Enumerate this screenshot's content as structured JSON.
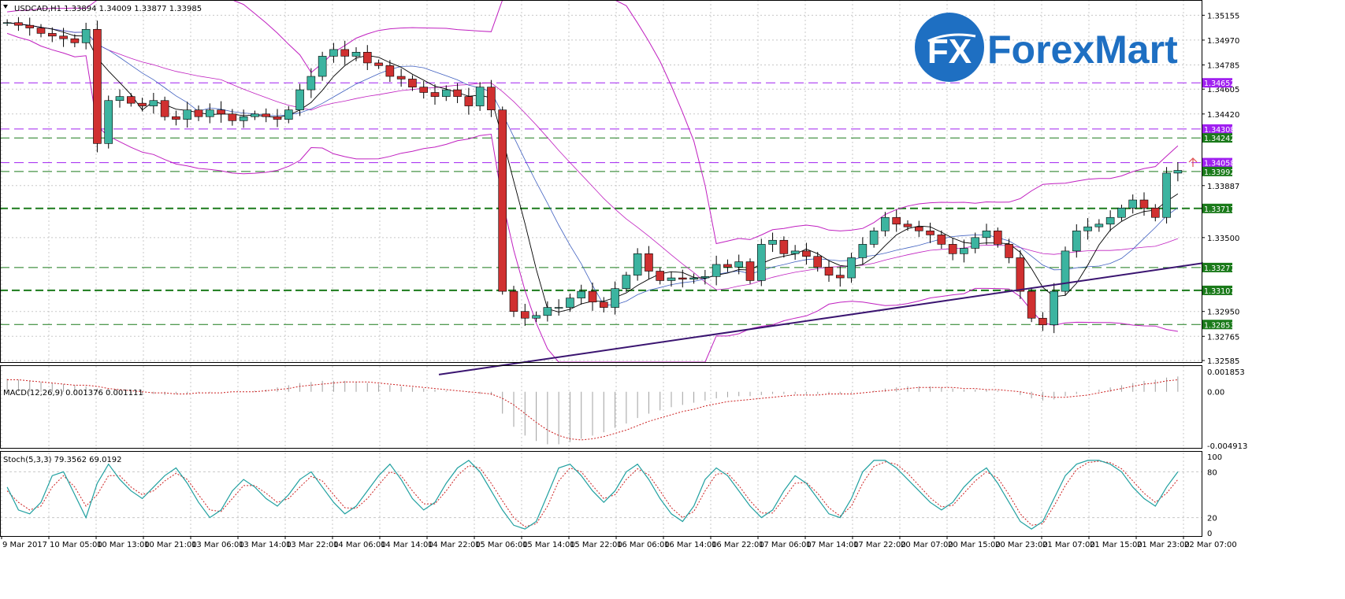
{
  "header": {
    "symbol_line": "USDCAD,H1  1.33894 1.34009 1.33877 1.33985"
  },
  "logo": {
    "mark": "FX",
    "brand": "ForexMart"
  },
  "chart_data": [
    {
      "type": "candlestick",
      "title": "USDCAD,H1  1.33894 1.34009 1.33877 1.33985",
      "price_axis_ticks": [
        "1.35155",
        "1.34970",
        "1.34785",
        "1.34605",
        "1.34420",
        "1.33887",
        "1.33500",
        "1.32950",
        "1.32765",
        "1.32585"
      ],
      "price_range": [
        1.32585,
        1.35245
      ],
      "level_lines": [
        {
          "value": "1.34652",
          "price": 1.34652,
          "color": "#a020f0",
          "style": "dash"
        },
        {
          "value": "1.34308",
          "price": 1.34308,
          "color": "#a020f0",
          "style": "dash"
        },
        {
          "value": "1.34242",
          "price": 1.34242,
          "color": "#1a7a1a",
          "style": "dash"
        },
        {
          "value": "1.34058",
          "price": 1.34058,
          "color": "#a020f0",
          "style": "dash"
        },
        {
          "value": "1.33992",
          "price": 1.33992,
          "color": "#1a7a1a",
          "style": "dash"
        },
        {
          "value": "1.33717",
          "price": 1.33717,
          "color": "#1a7a1a",
          "style": "dash-bold"
        },
        {
          "value": "1.33277",
          "price": 1.33277,
          "color": "#1a7a1a",
          "style": "dash"
        },
        {
          "value": "1.33107",
          "price": 1.33107,
          "color": "#1a7a1a",
          "style": "dash-bold"
        },
        {
          "value": "1.32853",
          "price": 1.32853,
          "color": "#1a7a1a",
          "style": "dash"
        }
      ],
      "trendline": {
        "from": [
          "9 Mar 2017",
          1.3248
        ],
        "to": [
          "22 Mar 07:00",
          1.3331
        ],
        "color": "#3a1470"
      },
      "time_labels": [
        "9 Mar 2017",
        "10 Mar 05:00",
        "10 Mar 13:00",
        "10 Mar 21:00",
        "13 Mar 06:00",
        "13 Mar 14:00",
        "13 Mar 22:00",
        "14 Mar 06:00",
        "14 Mar 14:00",
        "14 Mar 22:00",
        "15 Mar 06:00",
        "15 Mar 14:00",
        "15 Mar 22:00",
        "16 Mar 06:00",
        "16 Mar 14:00",
        "16 Mar 22:00",
        "17 Mar 06:00",
        "17 Mar 14:00",
        "17 Mar 22:00",
        "20 Mar 07:00",
        "20 Mar 15:00",
        "20 Mar 23:00",
        "21 Mar 07:00",
        "21 Mar 15:00",
        "21 Mar 23:00",
        "22 Mar 07:00"
      ],
      "price_path": [
        1.351,
        1.3508,
        1.3506,
        1.3502,
        1.35,
        1.3498,
        1.3495,
        1.3505,
        1.342,
        1.3452,
        1.3455,
        1.345,
        1.3448,
        1.3452,
        1.344,
        1.3438,
        1.3445,
        1.344,
        1.3445,
        1.3442,
        1.3437,
        1.344,
        1.3442,
        1.344,
        1.3438,
        1.3445,
        1.346,
        1.347,
        1.3485,
        1.349,
        1.3485,
        1.3488,
        1.348,
        1.3478,
        1.347,
        1.3468,
        1.3462,
        1.3458,
        1.3455,
        1.346,
        1.3455,
        1.3448,
        1.3462,
        1.3445,
        1.331,
        1.3295,
        1.329,
        1.3292,
        1.3298,
        1.3298,
        1.3305,
        1.331,
        1.3302,
        1.3298,
        1.3312,
        1.3322,
        1.3338,
        1.3325,
        1.3318,
        1.332,
        1.3319,
        1.332,
        1.3321,
        1.333,
        1.3328,
        1.3332,
        1.3318,
        1.3345,
        1.3348,
        1.3338,
        1.334,
        1.3336,
        1.3328,
        1.3322,
        1.332,
        1.3335,
        1.3345,
        1.3355,
        1.3365,
        1.336,
        1.3358,
        1.3355,
        1.3352,
        1.3345,
        1.3338,
        1.3342,
        1.335,
        1.3355,
        1.3345,
        1.3335,
        1.331,
        1.329,
        1.3285,
        1.331,
        1.334,
        1.3355,
        1.3358,
        1.336,
        1.3365,
        1.3372,
        1.3378,
        1.3372,
        1.3365,
        1.3398,
        1.34
      ]
    },
    {
      "type": "histogram",
      "title": "MACD(12,26,9) 0.001376 0.001111",
      "axis_ticks": [
        "0.001853",
        "0.00",
        "-0.004913"
      ],
      "range": [
        -0.004913,
        0.001853
      ],
      "histogram": [
        0.0012,
        0.0011,
        0.001,
        0.0009,
        0.0008,
        0.0007,
        0.0006,
        0.0005,
        0.0003,
        0.0001,
        0.0,
        -0.0001,
        -0.0002,
        -0.0002,
        -0.0003,
        -0.0002,
        -0.0002,
        -0.0001,
        -0.0001,
        0.0,
        0.0,
        0.0,
        0.0001,
        0.0002,
        0.0004,
        0.0006,
        0.0008,
        0.0009,
        0.001,
        0.001,
        0.001,
        0.0009,
        0.0008,
        0.0007,
        0.0006,
        0.0005,
        0.0004,
        0.0003,
        0.0002,
        0.0001,
        0.0,
        -0.0001,
        -0.0002,
        -0.0003,
        -0.002,
        -0.0032,
        -0.004,
        -0.0045,
        -0.0048,
        -0.0048,
        -0.0046,
        -0.0043,
        -0.004,
        -0.0037,
        -0.0033,
        -0.0029,
        -0.0024,
        -0.002,
        -0.0017,
        -0.0014,
        -0.0012,
        -0.001,
        -0.0008,
        -0.0006,
        -0.0005,
        -0.0004,
        -0.0004,
        -0.0003,
        -0.0002,
        -0.0002,
        -0.0002,
        -0.0002,
        -0.0002,
        -0.0002,
        -0.0002,
        -0.0001,
        0.0,
        0.0001,
        0.0003,
        0.0004,
        0.0005,
        0.0005,
        0.0005,
        0.0004,
        0.0003,
        0.0002,
        0.0002,
        0.0002,
        0.0001,
        0.0,
        -0.0003,
        -0.0006,
        -0.0008,
        -0.0007,
        -0.0004,
        -0.0002,
        0.0,
        0.0002,
        0.0004,
        0.0006,
        0.0008,
        0.001,
        0.0011,
        0.0013,
        0.0014
      ],
      "signal": [
        0.0011,
        0.0011,
        0.001,
        0.0009,
        0.0008,
        0.0007,
        0.0006,
        0.0006,
        0.0005,
        0.0003,
        0.0002,
        0.0001,
        0.0,
        -0.0001,
        -0.0001,
        -0.0002,
        -0.0002,
        -0.0001,
        -0.0001,
        -0.0001,
        0.0,
        0.0,
        0.0,
        0.0001,
        0.0002,
        0.0003,
        0.0005,
        0.0006,
        0.0007,
        0.0008,
        0.0009,
        0.0009,
        0.0009,
        0.0008,
        0.0007,
        0.0006,
        0.0005,
        0.0004,
        0.0003,
        0.0002,
        0.0001,
        0.0,
        -0.0001,
        -0.0002,
        -0.0006,
        -0.0012,
        -0.002,
        -0.0028,
        -0.0035,
        -0.004,
        -0.0043,
        -0.0044,
        -0.0043,
        -0.0041,
        -0.0038,
        -0.0035,
        -0.0031,
        -0.0027,
        -0.0024,
        -0.0021,
        -0.0018,
        -0.0016,
        -0.0013,
        -0.0011,
        -0.0009,
        -0.0008,
        -0.0007,
        -0.0006,
        -0.0005,
        -0.0004,
        -0.0003,
        -0.0003,
        -0.0003,
        -0.0002,
        -0.0002,
        -0.0002,
        -0.0001,
        0.0,
        0.0001,
        0.0002,
        0.0003,
        0.0004,
        0.0004,
        0.0004,
        0.0004,
        0.0003,
        0.0003,
        0.0002,
        0.0002,
        0.0001,
        0.0,
        -0.0002,
        -0.0004,
        -0.0005,
        -0.0005,
        -0.0004,
        -0.0003,
        -0.0001,
        0.0001,
        0.0003,
        0.0005,
        0.0007,
        0.0008,
        0.001,
        0.0011
      ]
    },
    {
      "type": "line",
      "title": "Stoch(5,3,3) 79.3562 69.0192",
      "axis_ticks": [
        "100",
        "80",
        "20",
        "0"
      ],
      "range": [
        0,
        100
      ],
      "series": [
        {
          "name": "main",
          "color": "#20a0a0",
          "values": [
            60,
            30,
            25,
            40,
            75,
            80,
            50,
            20,
            65,
            90,
            70,
            55,
            45,
            60,
            75,
            85,
            65,
            40,
            20,
            30,
            55,
            70,
            60,
            45,
            35,
            50,
            70,
            80,
            60,
            40,
            25,
            35,
            55,
            75,
            90,
            70,
            45,
            30,
            40,
            65,
            85,
            95,
            80,
            55,
            30,
            10,
            5,
            15,
            50,
            85,
            90,
            75,
            55,
            40,
            55,
            80,
            90,
            70,
            45,
            25,
            15,
            35,
            70,
            85,
            75,
            55,
            35,
            20,
            30,
            55,
            75,
            65,
            45,
            25,
            20,
            45,
            80,
            95,
            95,
            85,
            70,
            55,
            40,
            30,
            40,
            60,
            75,
            85,
            65,
            40,
            15,
            5,
            15,
            45,
            75,
            90,
            95,
            95,
            90,
            80,
            60,
            45,
            35,
            60,
            80
          ]
        },
        {
          "name": "signal",
          "color": "#cc2020",
          "values": [
            55,
            40,
            30,
            35,
            60,
            75,
            60,
            35,
            50,
            75,
            75,
            60,
            50,
            55,
            68,
            78,
            70,
            50,
            30,
            28,
            45,
            62,
            62,
            52,
            40,
            45,
            60,
            74,
            68,
            50,
            33,
            32,
            45,
            63,
            80,
            75,
            55,
            38,
            38,
            55,
            75,
            88,
            85,
            65,
            42,
            20,
            8,
            12,
            35,
            68,
            85,
            80,
            62,
            45,
            50,
            70,
            84,
            76,
            55,
            33,
            20,
            28,
            55,
            77,
            78,
            62,
            42,
            26,
            26,
            45,
            65,
            66,
            52,
            33,
            22,
            35,
            65,
            87,
            93,
            90,
            78,
            62,
            46,
            34,
            36,
            52,
            68,
            80,
            72,
            50,
            25,
            10,
            12,
            35,
            62,
            83,
            92,
            94,
            92,
            84,
            68,
            52,
            40,
            52,
            70
          ]
        }
      ]
    }
  ]
}
